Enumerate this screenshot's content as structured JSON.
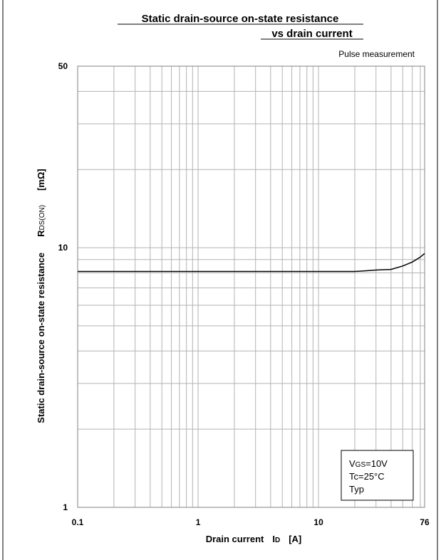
{
  "chart_data": {
    "type": "line",
    "title_line1": "Static drain-source on-state resistance",
    "title_line2": "vs drain current",
    "annotation": "Pulse measurement",
    "xlabel": {
      "prefix": "Drain current",
      "symbol": "I",
      "subscript": "D",
      "unit": "[A]"
    },
    "ylabel": {
      "text": "Static drain-source on-state resistance",
      "symbol": "R",
      "subscript": "DS(ON)",
      "unit": "[mΩ]"
    },
    "x_scale": "log",
    "y_scale": "log",
    "xlim": [
      0.1,
      76
    ],
    "ylim": [
      1,
      50
    ],
    "x_ticks": [
      "0.1",
      "1",
      "10",
      "76"
    ],
    "y_ticks": [
      "1",
      "10",
      "50"
    ],
    "grid": true,
    "series": [
      {
        "x": [
          0.1,
          1,
          10,
          20,
          25,
          30,
          40,
          50,
          60,
          70,
          76
        ],
        "y": [
          8.1,
          8.1,
          8.1,
          8.1,
          8.15,
          8.2,
          8.25,
          8.5,
          8.8,
          9.2,
          9.5
        ]
      }
    ],
    "legend": {
      "placement": "bottom-right",
      "vgs": {
        "symbol": "V",
        "subscript": "GS",
        "value": "=10V"
      },
      "tc": "Tc=25°C",
      "typ": "Typ"
    }
  }
}
